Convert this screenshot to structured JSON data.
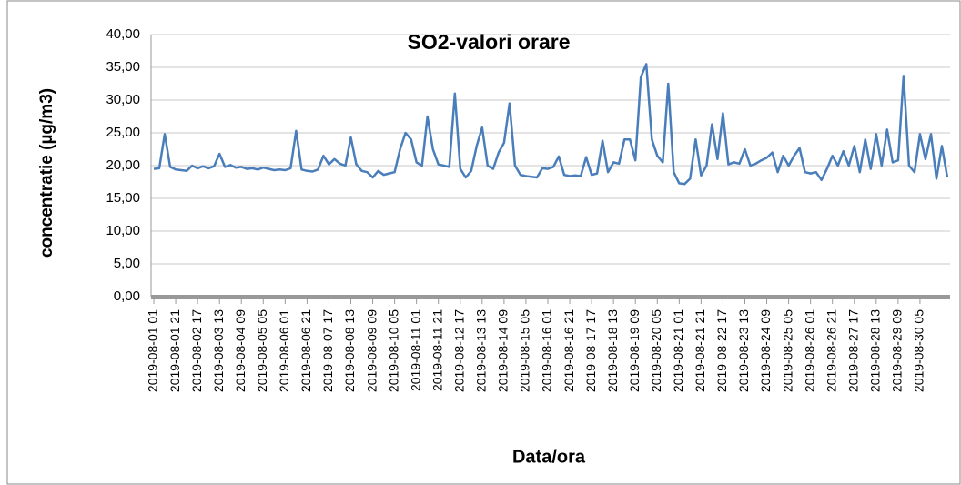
{
  "chart_data": {
    "type": "line",
    "title": "SO2-valori orare",
    "x_label": "Data/ora",
    "y_label": "concentratie (µg/m3)",
    "categories": [
      "2019-08-01 01",
      null,
      null,
      null,
      "2019-08-01 21",
      null,
      null,
      null,
      "2019-08-02 17",
      null,
      null,
      null,
      "2019-08-03 13",
      null,
      null,
      null,
      "2019-08-04 09",
      null,
      null,
      null,
      "2019-08-05 05",
      null,
      null,
      null,
      "2019-08-06 01",
      null,
      null,
      null,
      "2019-08-06 21",
      null,
      null,
      null,
      "2019-08-07 17",
      null,
      null,
      null,
      "2019-08-08 13",
      null,
      null,
      null,
      "2019-08-09 09",
      null,
      null,
      null,
      "2019-08-10 05",
      null,
      null,
      null,
      "2019-08-11 01",
      null,
      null,
      null,
      "2019-08-11 21",
      null,
      null,
      null,
      "2019-08-12 17",
      null,
      null,
      null,
      "2019-08-13 13",
      null,
      null,
      null,
      "2019-08-14 09",
      null,
      null,
      null,
      "2019-08-15 05",
      null,
      null,
      null,
      "2019-08-16 01",
      null,
      null,
      null,
      "2019-08-16 21",
      null,
      null,
      null,
      "2019-08-17 17",
      null,
      null,
      null,
      "2019-08-18 13",
      null,
      null,
      null,
      "2019-08-19 09",
      null,
      null,
      null,
      "2019-08-20 05",
      null,
      null,
      null,
      "2019-08-21 01",
      null,
      null,
      null,
      "2019-08-21 21",
      null,
      null,
      null,
      "2019-08-22 17",
      null,
      null,
      null,
      "2019-08-23 13",
      null,
      null,
      null,
      "2019-08-24 09",
      null,
      null,
      null,
      "2019-08-25 05",
      null,
      null,
      null,
      "2019-08-26 01",
      null,
      null,
      null,
      "2019-08-26 21",
      null,
      null,
      null,
      "2019-08-27 17",
      null,
      null,
      null,
      "2019-08-28 13",
      null,
      null,
      null,
      "2019-08-29 09",
      null,
      null,
      null,
      "2019-08-30 05",
      null,
      null,
      null,
      null,
      null
    ],
    "series": [
      {
        "name": "SO2",
        "color": "#4a7ebb",
        "values": [
          19.5,
          19.6,
          24.8,
          19.8,
          19.4,
          19.3,
          19.2,
          20,
          19.6,
          19.9,
          19.6,
          19.9,
          21.8,
          19.8,
          20.1,
          19.7,
          19.8,
          19.5,
          19.6,
          19.4,
          19.7,
          19.5,
          19.3,
          19.4,
          19.3,
          19.6,
          25.3,
          19.4,
          19.2,
          19.1,
          19.4,
          21.5,
          20.2,
          21,
          20.3,
          20,
          24.3,
          20.2,
          19.2,
          19,
          18.2,
          19.2,
          18.6,
          18.8,
          19,
          22.5,
          25,
          24,
          20.5,
          20,
          27.5,
          22.5,
          20.2,
          20,
          19.8,
          31,
          19.5,
          18.2,
          19.2,
          23,
          25.8,
          20,
          19.5,
          22,
          23.5,
          29.5,
          20,
          18.6,
          18.4,
          18.3,
          18.2,
          19.6,
          19.5,
          19.8,
          21.4,
          18.6,
          18.4,
          18.5,
          18.4,
          21.3,
          18.6,
          18.8,
          23.8,
          19,
          20.5,
          20.3,
          24,
          24,
          20.8,
          33.5,
          35.5,
          24,
          21.5,
          20.5,
          32.5,
          19,
          17.3,
          17.2,
          18,
          24,
          18.5,
          20,
          26.3,
          21,
          28,
          20.2,
          20.5,
          20.3,
          22.5,
          20,
          20.3,
          20.8,
          21.2,
          22,
          19,
          21.5,
          20,
          21.5,
          22.7,
          19,
          18.8,
          19,
          17.8,
          19.5,
          21.5,
          20,
          22.2,
          20,
          23,
          19,
          24,
          19.5,
          24.8,
          20,
          25.5,
          20.5,
          20.8,
          33.7,
          20,
          19,
          24.8,
          21,
          24.8,
          18,
          23,
          18.2
        ]
      }
    ],
    "ylim": [
      0,
      40
    ],
    "yticks": [
      {
        "value": 0,
        "label": "0,00"
      },
      {
        "value": 5,
        "label": "5,00"
      },
      {
        "value": 10,
        "label": "10,00"
      },
      {
        "value": 15,
        "label": "15,00"
      },
      {
        "value": 20,
        "label": "20,00"
      },
      {
        "value": 25,
        "label": "25,00"
      },
      {
        "value": 30,
        "label": "30,00"
      },
      {
        "value": 35,
        "label": "35,00"
      },
      {
        "value": 40,
        "label": "40,00"
      }
    ],
    "grid": true
  }
}
